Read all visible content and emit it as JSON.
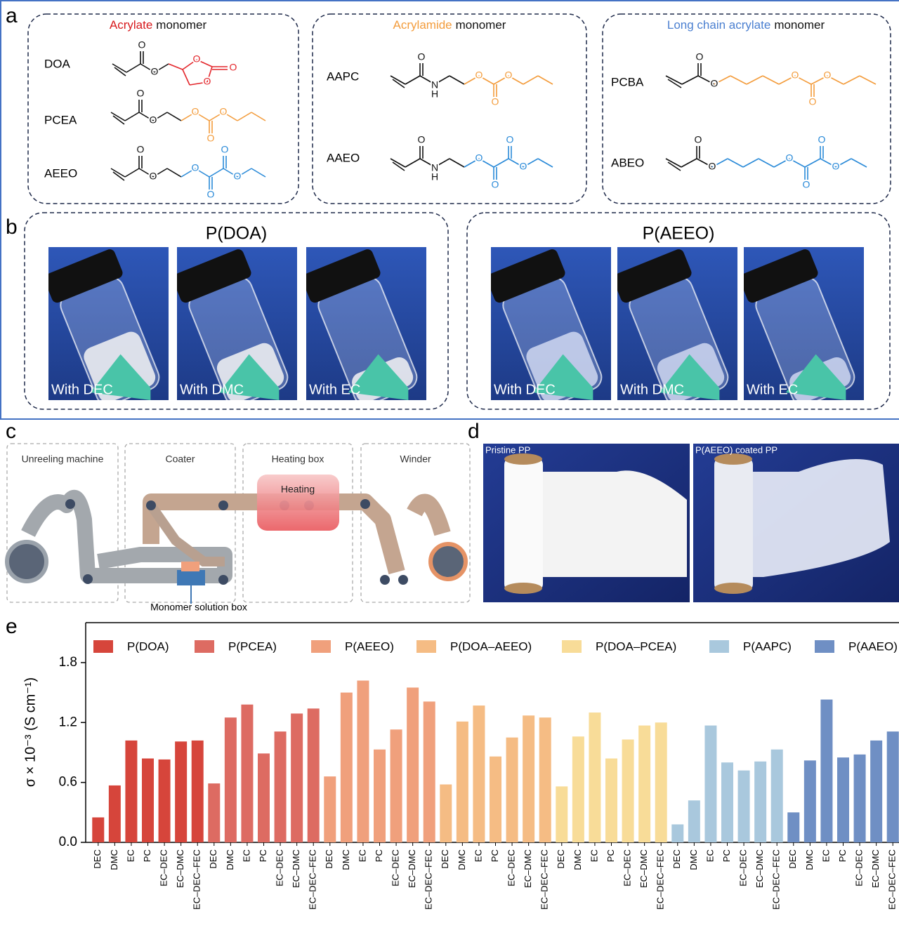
{
  "panels": {
    "a": {
      "letter": "a",
      "boxes": [
        {
          "title_highlight": "Acrylate",
          "title_rest": "monomer",
          "monomers": [
            "DOA",
            "PCEA",
            "AEEO"
          ]
        },
        {
          "title_highlight": "Acrylamide",
          "title_rest": "monomer",
          "monomers": [
            "AAPC",
            "AAEO"
          ]
        },
        {
          "title_highlight": "Long chain acrylate",
          "title_rest": "monomer",
          "monomers": [
            "PCBA",
            "ABEO"
          ]
        }
      ],
      "atoms": {
        "o": "O",
        "n": "N",
        "h": "H"
      }
    },
    "b": {
      "letter": "b",
      "groups": [
        {
          "title": "P(DOA)",
          "photos": [
            "With DEC",
            "With DMC",
            "With EC"
          ]
        },
        {
          "title": "P(AEEO)",
          "photos": [
            "With DEC",
            "With DMC",
            "With EC"
          ]
        }
      ]
    },
    "c": {
      "letter": "c",
      "stations": [
        "Unreeling machine",
        "Coater",
        "Heating box",
        "Winder"
      ],
      "heater": "Heating",
      "solution_box": "Monomer solution box"
    },
    "d": {
      "letter": "d",
      "photos": [
        "Pristine PP",
        "P(AEEO) coated PP"
      ]
    },
    "e": {
      "letter": "e"
    }
  },
  "chart_data": {
    "type": "bar",
    "y_label": "σ × 10⁻³ (S cm⁻¹)",
    "ylim": [
      0,
      2.2
    ],
    "yticks": [
      {
        "value": 0,
        "label": "0.0"
      },
      {
        "value": 0.6,
        "label": "0.6"
      },
      {
        "value": 1.2,
        "label": "1.2"
      },
      {
        "value": 1.8,
        "label": "1.8"
      }
    ],
    "series": [
      {
        "name": "P(DOA)",
        "color": "#d6453b",
        "categories": [
          "DEC",
          "DMC",
          "EC",
          "PC",
          "EC–DEC",
          "EC–DMC",
          "EC–DEC–FEC"
        ],
        "values": [
          0.25,
          0.57,
          1.02,
          0.84,
          0.83,
          1.01,
          1.02
        ]
      },
      {
        "name": "P(PCEA)",
        "color": "#dd6b62",
        "categories": [
          "DEC",
          "DMC",
          "EC",
          "PC",
          "EC–DEC",
          "EC–DMC",
          "EC–DEC–FEC"
        ],
        "values": [
          0.59,
          1.25,
          1.38,
          0.89,
          1.11,
          1.29,
          1.34
        ]
      },
      {
        "name": "P(AEEO)",
        "color": "#f0a07c",
        "categories": [
          "DEC",
          "DMC",
          "EC",
          "PC",
          "EC–DEC",
          "EC–DMC",
          "EC–DEC–FEC"
        ],
        "values": [
          0.66,
          1.5,
          1.62,
          0.93,
          1.13,
          1.55,
          1.41
        ]
      },
      {
        "name": "P(DOA–AEEO)",
        "color": "#f5bc84",
        "categories": [
          "DEC",
          "DMC",
          "EC",
          "PC",
          "EC–DEC",
          "EC–DMC",
          "EC–DEC–FEC"
        ],
        "values": [
          0.58,
          1.21,
          1.37,
          0.86,
          1.05,
          1.27,
          1.25
        ]
      },
      {
        "name": "P(DOA–PCEA)",
        "color": "#f8dc98",
        "categories": [
          "DEC",
          "DMC",
          "EC",
          "PC",
          "EC–DEC",
          "EC–DMC",
          "EC–DEC–FEC"
        ],
        "values": [
          0.56,
          1.06,
          1.3,
          0.84,
          1.03,
          1.17,
          1.2
        ]
      },
      {
        "name": "P(AAPC)",
        "color": "#a9c8dd",
        "categories": [
          "DEC",
          "DMC",
          "EC",
          "PC",
          "EC–DEC",
          "EC–DMC",
          "EC–DEC–FEC"
        ],
        "values": [
          0.18,
          0.42,
          1.17,
          0.8,
          0.72,
          0.81,
          0.93
        ]
      },
      {
        "name": "P(AAEO)",
        "color": "#6f8fc4",
        "categories": [
          "DEC",
          "DMC",
          "EC",
          "PC",
          "EC–DEC",
          "EC–DMC",
          "EC–DEC–FEC"
        ],
        "values": [
          0.3,
          0.82,
          1.43,
          0.85,
          0.88,
          1.02,
          1.11
        ]
      }
    ]
  }
}
